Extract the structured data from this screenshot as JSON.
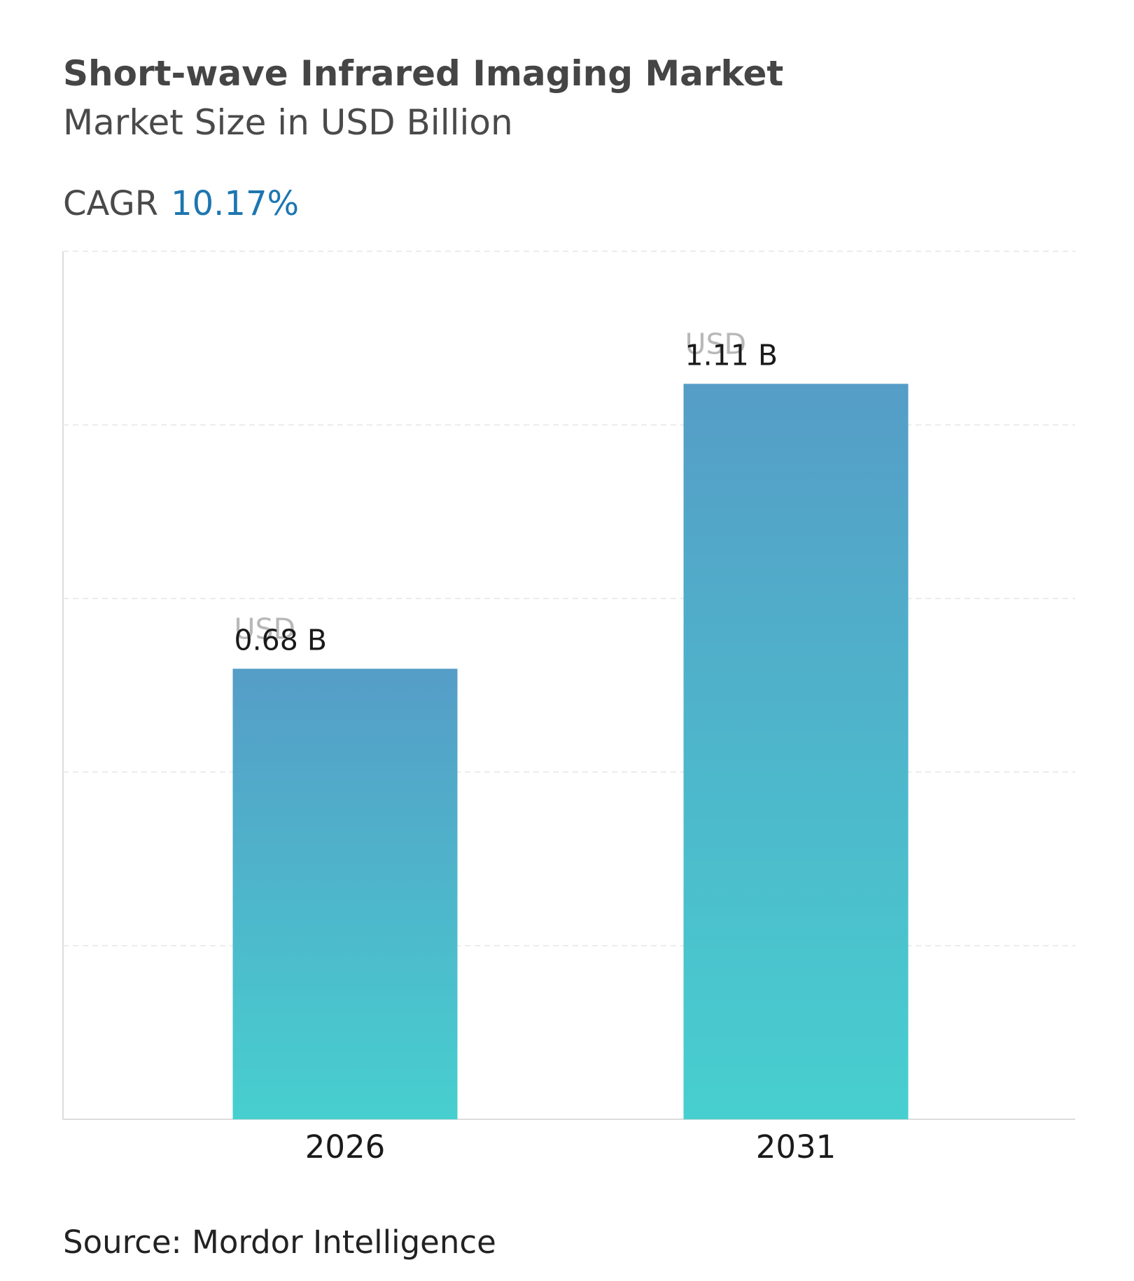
{
  "chart_data": {
    "type": "bar",
    "title": "Short-wave Infrared Imaging Market",
    "subtitle": "Market Size in USD Billion",
    "cagr_label": "CAGR",
    "cagr_value": "10.17%",
    "categories": [
      "2026",
      "2031"
    ],
    "values": [
      0.68,
      1.11
    ],
    "value_label_prefix": "USD",
    "value_labels": [
      "0.68 B",
      "1.11 B"
    ],
    "color_top": "#559dc7",
    "color_bottom": "#47cfcf",
    "ylim": [
      0,
      1.31
    ],
    "yticks": [
      0,
      0.262,
      0.524,
      0.786,
      1.048,
      1.31
    ],
    "grid": true,
    "source": "Source: Mordor Intelligence"
  }
}
